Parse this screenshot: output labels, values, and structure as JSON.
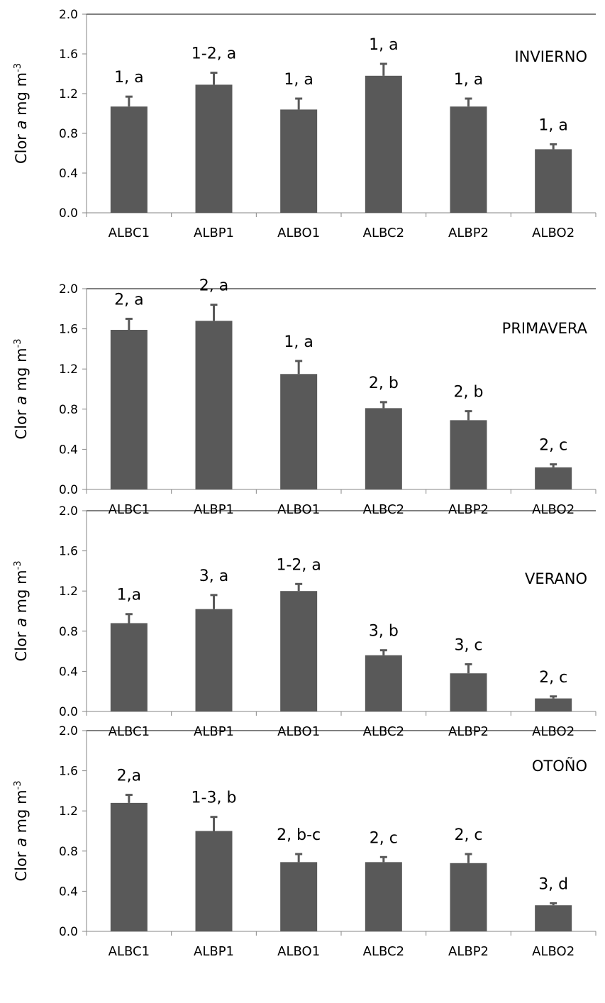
{
  "chart_data": [
    {
      "type": "bar",
      "title": "INVIERNO",
      "categories": [
        "ALBC1",
        "ALBP1",
        "ALBO1",
        "ALBC2",
        "ALBP2",
        "ALBO2"
      ],
      "values": [
        1.07,
        1.29,
        1.04,
        1.38,
        1.07,
        0.64
      ],
      "errors": [
        0.1,
        0.12,
        0.11,
        0.12,
        0.08,
        0.05
      ],
      "annotations": [
        "1, a",
        "1-2, a",
        "1, a",
        "1, a",
        "1, a",
        "1, a"
      ],
      "ylabel": "Clor a mg m-3",
      "ylim": [
        0,
        2.0
      ],
      "yticks": [
        "0.0",
        "0.4",
        "0.8",
        "1.2",
        "1.6",
        "2.0"
      ],
      "color": "#595959"
    },
    {
      "type": "bar",
      "title": "PRIMAVERA",
      "categories": [
        "ALBC1",
        "ALBP1",
        "ALBO1",
        "ALBC2",
        "ALBP2",
        "ALBO2"
      ],
      "values": [
        1.59,
        1.68,
        1.15,
        0.81,
        0.69,
        0.22
      ],
      "errors": [
        0.11,
        0.16,
        0.13,
        0.06,
        0.09,
        0.03
      ],
      "annotations": [
        "2, a",
        "2, a",
        "1, a",
        "2, b",
        "2, b",
        "2, c"
      ],
      "ylabel": "Clor a mg m-3",
      "ylim": [
        0,
        2.0
      ],
      "yticks": [
        "0.0",
        "0.4",
        "0.8",
        "1.2",
        "1.6",
        "2.0"
      ],
      "color": "#595959"
    },
    {
      "type": "bar",
      "title": "VERANO",
      "categories": [
        "ALBC1",
        "ALBP1",
        "ALBO1",
        "ALBC2",
        "ALBP2",
        "ALBO2"
      ],
      "values": [
        0.88,
        1.02,
        1.2,
        0.56,
        0.38,
        0.13
      ],
      "errors": [
        0.09,
        0.14,
        0.07,
        0.05,
        0.09,
        0.02
      ],
      "annotations": [
        "1,a",
        "3, a",
        "1-2, a",
        "3, b",
        "3, c",
        "2, c"
      ],
      "ylabel": "Clor a mg m-3",
      "ylim": [
        0,
        2.0
      ],
      "yticks": [
        "0.0",
        "0.4",
        "0.8",
        "1.2",
        "1.6",
        "2.0"
      ],
      "color": "#595959"
    },
    {
      "type": "bar",
      "title": "OTOÑO",
      "categories": [
        "ALBC1",
        "ALBP1",
        "ALBO1",
        "ALBC2",
        "ALBP2",
        "ALBO2"
      ],
      "values": [
        1.28,
        1.0,
        0.69,
        0.69,
        0.68,
        0.26
      ],
      "errors": [
        0.08,
        0.14,
        0.08,
        0.05,
        0.09,
        0.02
      ],
      "annotations": [
        "2,a",
        "1-3, b",
        "2, b-c",
        "2, c",
        "2, c",
        "3, d"
      ],
      "ylabel": "Clor a mg m-3",
      "ylim": [
        0,
        2.0
      ],
      "yticks": [
        "0.0",
        "0.4",
        "0.8",
        "1.2",
        "1.6",
        "2.0"
      ],
      "color": "#595959"
    }
  ]
}
